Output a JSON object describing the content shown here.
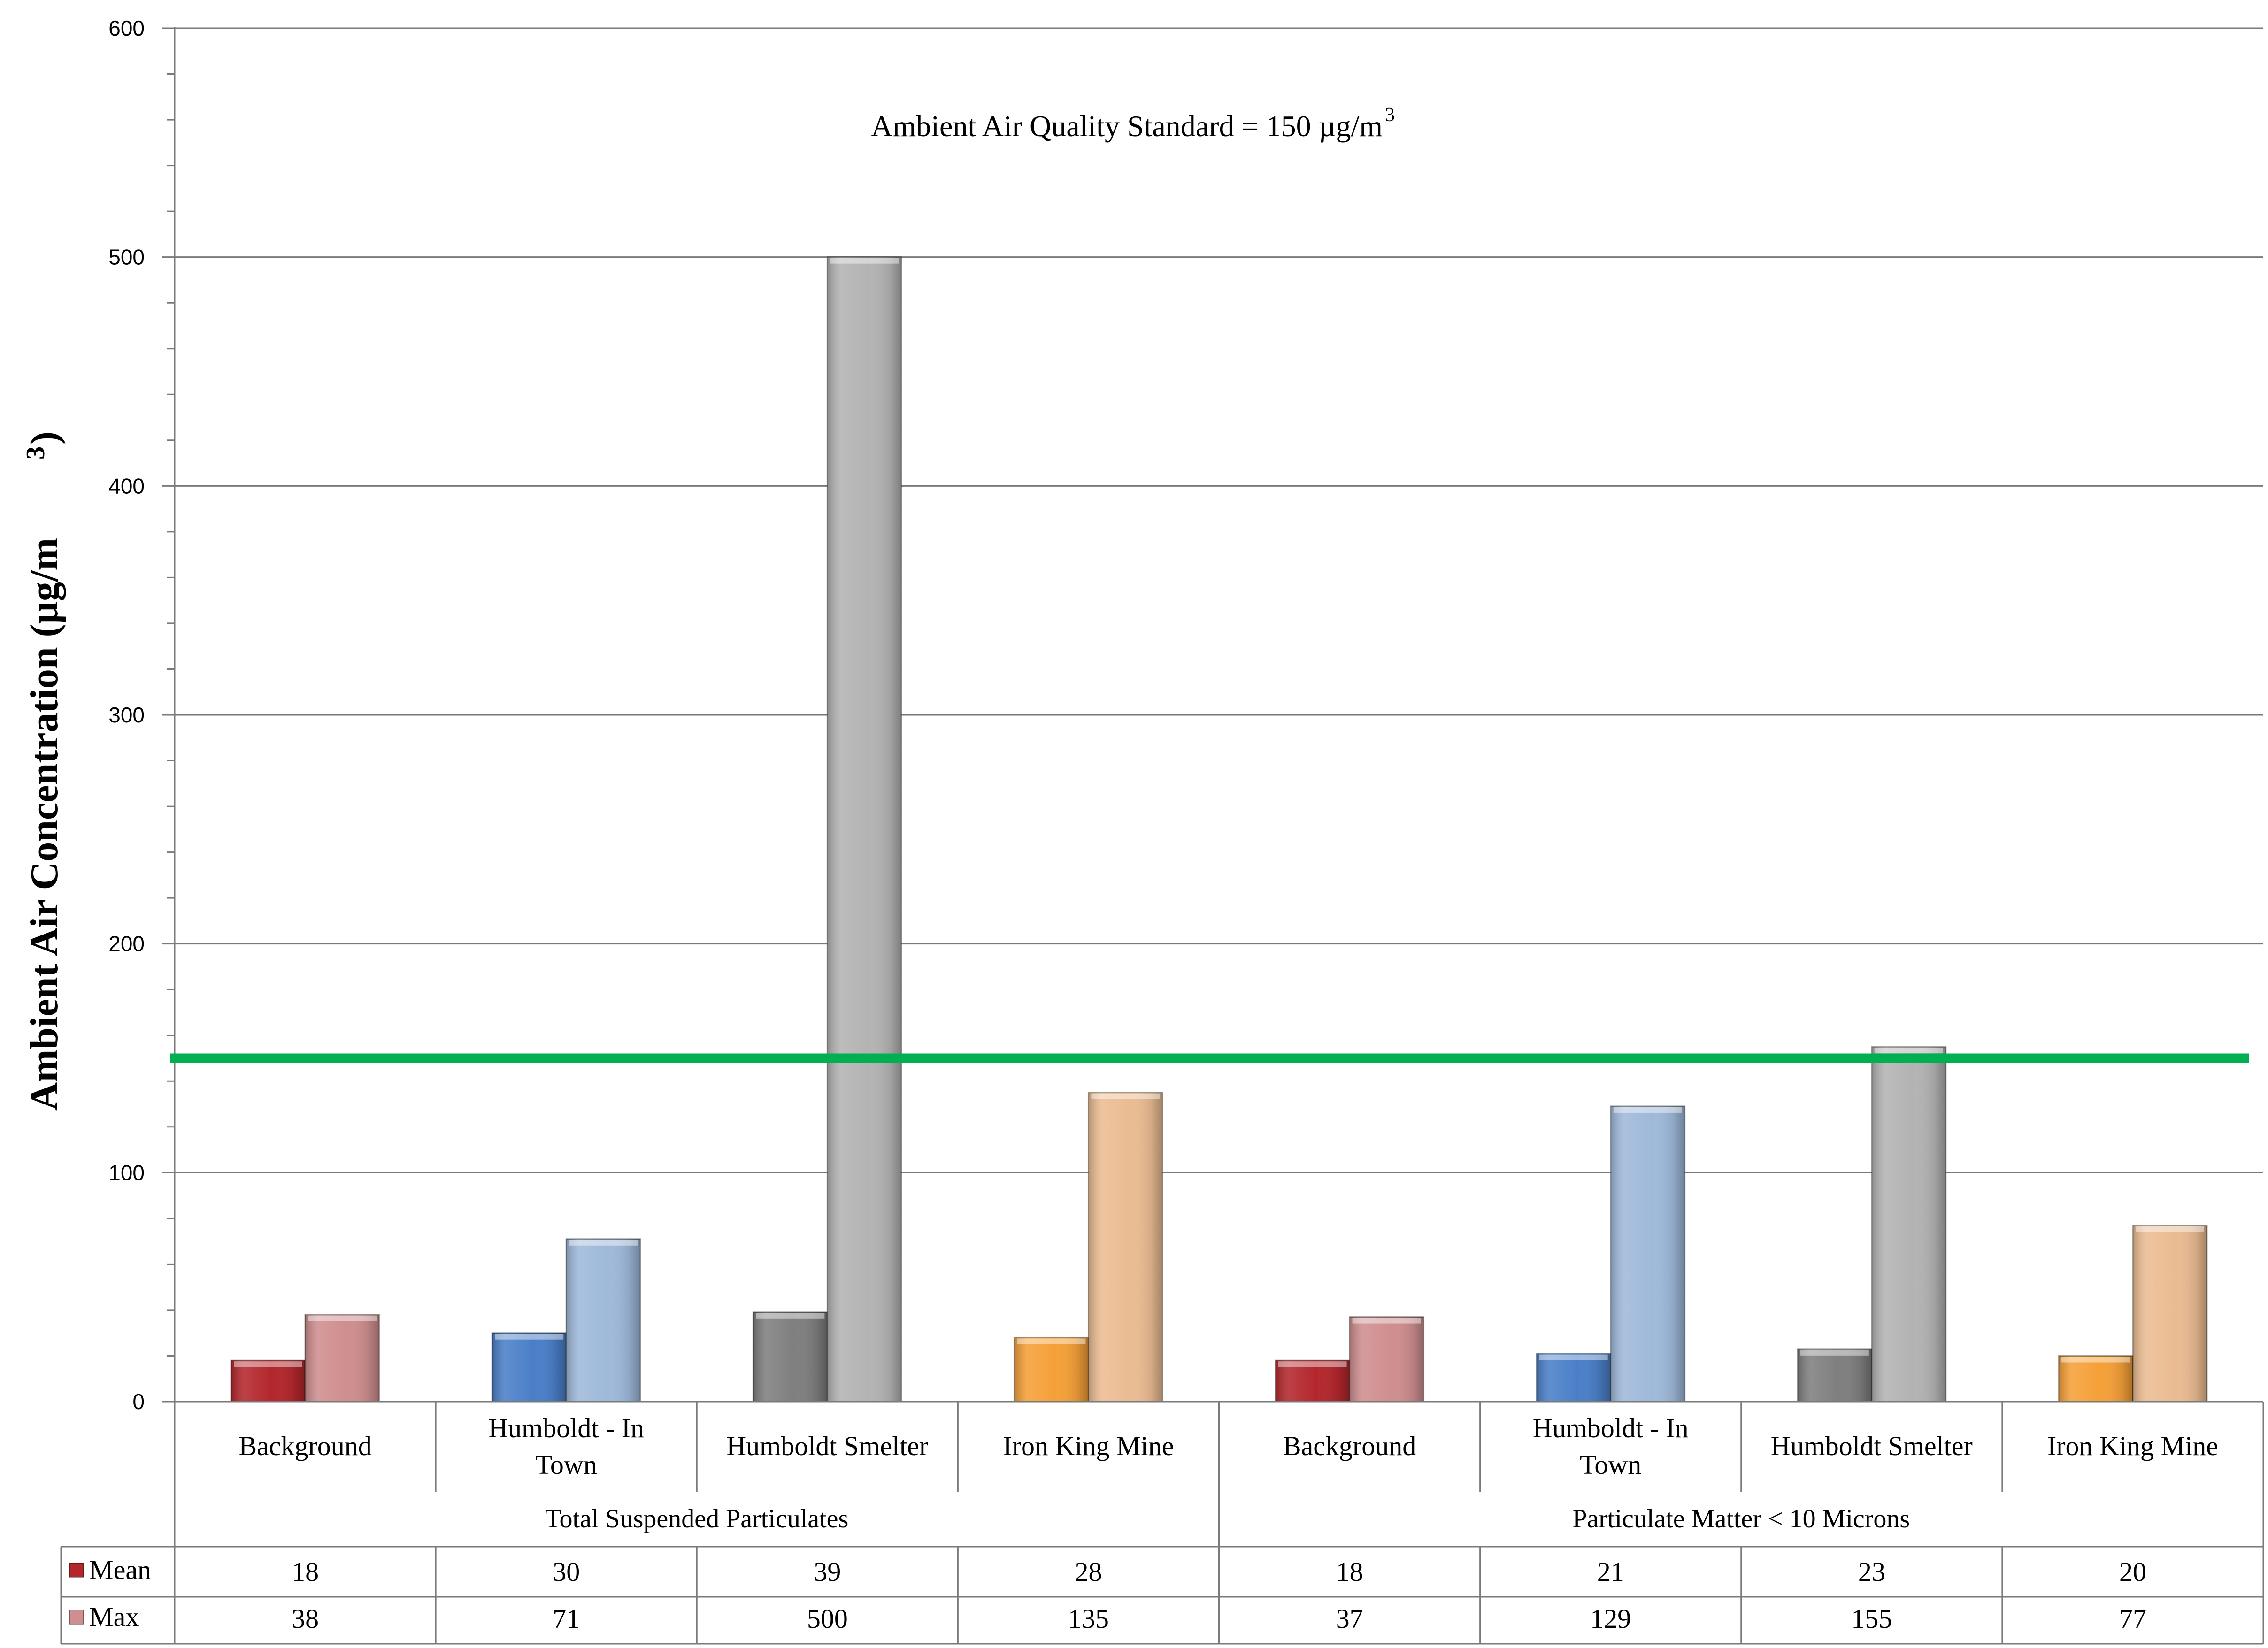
{
  "chart_data": {
    "type": "bar",
    "ylabel": "Ambient Air Concentration (µg/m",
    "ylabel_sup": "3",
    "ylabel_close": ")",
    "ylim": [
      0,
      600
    ],
    "yticks": [
      0,
      100,
      200,
      300,
      400,
      500,
      600
    ],
    "grid": true,
    "annotation": {
      "text": "Ambient Air Quality Standard  = 150 µg/m",
      "sup": "3",
      "line_value": 150,
      "line_color": "#00b050"
    },
    "groups": [
      {
        "label": "Total Suspended Particulates",
        "categories": [
          "Background",
          "Humboldt - In Town",
          "Humboldt Smelter",
          "Iron King Mine"
        ]
      },
      {
        "label": "Particulate Matter < 10 Microns",
        "categories": [
          "Background",
          "Humboldt - In Town",
          "Humboldt Smelter",
          "Iron King Mine"
        ]
      }
    ],
    "series": [
      {
        "name": "Mean",
        "values": [
          18,
          30,
          39,
          28,
          18,
          21,
          23,
          20
        ]
      },
      {
        "name": "Max",
        "values": [
          38,
          71,
          500,
          135,
          37,
          129,
          155,
          77
        ]
      }
    ],
    "category_colors": {
      "Background": {
        "mean": "#b3272c",
        "max": "#cf8e8f"
      },
      "Humboldt - In Town": {
        "mean": "#4a7fc8",
        "max": "#9fb9da"
      },
      "Humboldt Smelter": {
        "mean": "#7f7f7f",
        "max": "#b3b3b3"
      },
      "Iron King Mine": {
        "mean": "#f5a038",
        "max": "#ebbc92"
      }
    },
    "legend_swatches": {
      "Mean": "#b3272c",
      "Max": "#cf8e8f"
    }
  }
}
